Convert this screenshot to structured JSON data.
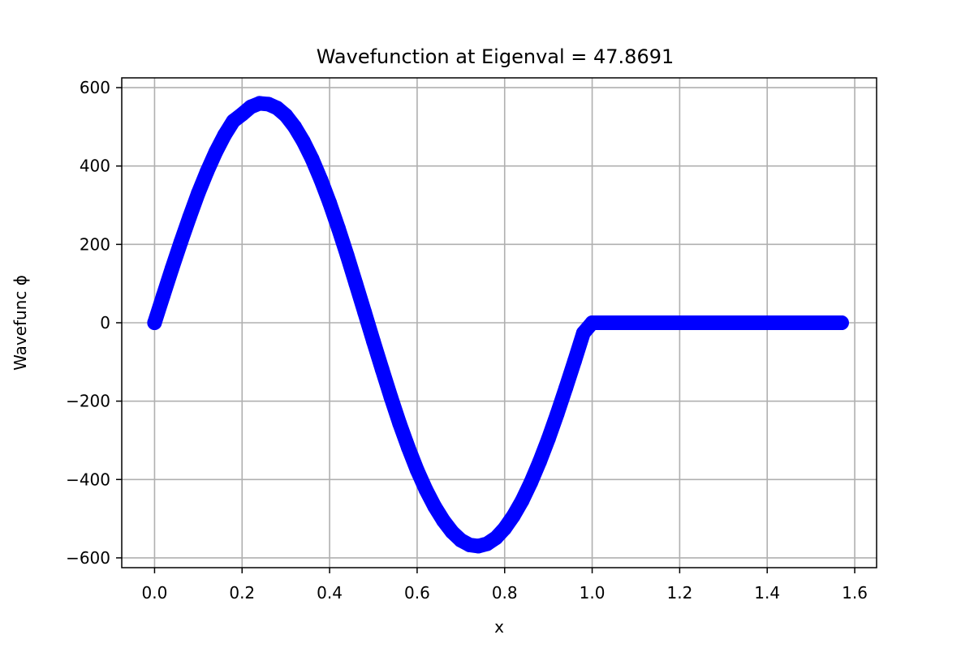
{
  "chart_data": {
    "type": "scatter",
    "title": "Wavefunction at Eigenval = 47.8691",
    "xlabel": "x",
    "ylabel": "Wavefunc ϕ",
    "xlim": [
      -0.075,
      1.65
    ],
    "ylim": [
      -625,
      625
    ],
    "x_ticks": [
      0.0,
      0.2,
      0.4,
      0.6,
      0.8,
      1.0,
      1.2,
      1.4,
      1.6
    ],
    "x_tick_labels": [
      "0.0",
      "0.2",
      "0.4",
      "0.6",
      "0.8",
      "1.0",
      "1.2",
      "1.4",
      "1.6"
    ],
    "y_ticks": [
      600,
      400,
      200,
      0,
      -200,
      -400,
      -600
    ],
    "y_tick_labels": [
      "600",
      "400",
      "200",
      "0",
      "−200",
      "−400",
      "−600"
    ],
    "grid": true,
    "marker_color": "#0000ff",
    "series": [
      {
        "x": [
          0.0,
          0.02,
          0.04,
          0.06,
          0.08,
          0.1,
          0.12,
          0.14,
          0.16,
          0.18,
          0.2,
          0.22,
          0.24,
          0.26,
          0.28,
          0.3,
          0.32,
          0.34,
          0.36,
          0.38,
          0.4,
          0.42,
          0.44,
          0.46,
          0.48,
          0.5,
          0.52,
          0.54,
          0.56,
          0.58,
          0.6,
          0.62,
          0.64,
          0.66,
          0.68,
          0.7,
          0.72,
          0.74,
          0.76,
          0.78,
          0.8,
          0.82,
          0.84,
          0.86,
          0.88,
          0.9,
          0.92,
          0.94,
          0.96,
          0.98,
          1.0,
          1.05,
          1.1,
          1.15,
          1.2,
          1.25,
          1.3,
          1.35,
          1.4,
          1.45,
          1.5,
          1.55,
          1.57
        ],
        "y": [
          0,
          70,
          139,
          206,
          270,
          331,
          386,
          436,
          479,
          515,
          532,
          551,
          560,
          558,
          548,
          529,
          500,
          463,
          418,
          365,
          306,
          241,
          172,
          100,
          27,
          -47,
          -119,
          -190,
          -257,
          -319,
          -376,
          -426,
          -469,
          -505,
          -534,
          -555,
          -567,
          -570,
          -564,
          -549,
          -525,
          -493,
          -454,
          -407,
          -354,
          -296,
          -233,
          -166,
          -97,
          -26,
          0,
          0,
          0,
          0,
          0,
          0,
          0,
          0,
          0,
          0,
          0,
          0,
          0
        ]
      }
    ]
  }
}
